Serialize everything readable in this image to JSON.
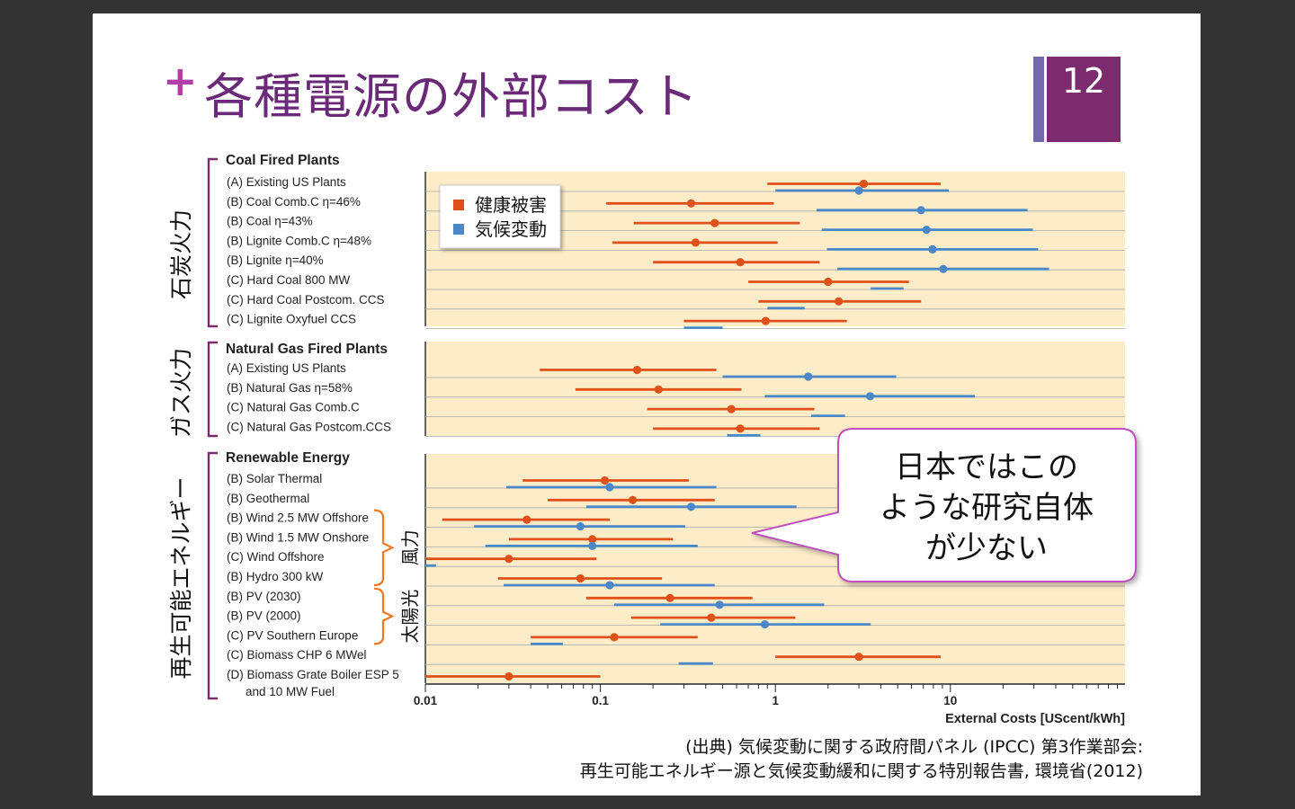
{
  "slide": {
    "title": "各種電源の外部コスト",
    "page_number": "12",
    "plus_symbol": "+",
    "source_lines": [
      "(出典) 気候変動に関する政府間パネル (IPCC) 第3作業部会:",
      "再生可能エネルギー源と気候変動緩和に関する特別報告書, 環境省(2012)"
    ],
    "callout_lines": [
      "日本ではこの",
      "ような研究自体",
      "が少ない"
    ]
  },
  "colors": {
    "health": "#e0501a",
    "climate": "#4a88c8",
    "panel_bg": "#fdecc8",
    "bracket": "#7b2b6e",
    "sub_bracket": "#f07820",
    "callout_border": "#c050c0"
  },
  "chart_data": {
    "type": "scatter",
    "x_scale": "log",
    "xlim": [
      0.01,
      1000
    ],
    "x_ticks": [
      "0.01",
      "0.1",
      "1",
      "10"
    ],
    "xlabel": "External Costs [UScent/kWh]",
    "legend": {
      "position": "top-left",
      "entries": [
        "健康被害",
        "気候変動"
      ]
    },
    "groups": [
      {
        "side_label": "石炭火力",
        "header": "Coal Fired Plants",
        "rows": [
          {
            "label": "(A) Existing US Plants",
            "health": {
              "lo": 0.9,
              "mid": 3.2,
              "hi": 8.8
            },
            "climate": {
              "lo": 1.0,
              "mid": 3.0,
              "hi": 9.8
            }
          },
          {
            "label": "(B) Coal Comb.C η=46%",
            "health": {
              "lo": 0.108,
              "mid": 0.33,
              "hi": 0.98
            },
            "climate": {
              "lo": 1.72,
              "mid": 6.8,
              "hi": 27.6
            }
          },
          {
            "label": "(B) Coal η=43%",
            "health": {
              "lo": 0.155,
              "mid": 0.45,
              "hi": 1.38
            },
            "climate": {
              "lo": 1.84,
              "mid": 7.3,
              "hi": 29.6
            }
          },
          {
            "label": "(B) Lignite Comb.C η=48%",
            "health": {
              "lo": 0.117,
              "mid": 0.35,
              "hi": 1.03
            },
            "climate": {
              "lo": 1.97,
              "mid": 7.9,
              "hi": 31.7
            }
          },
          {
            "label": "(B) Lignite η=40%",
            "health": {
              "lo": 0.2,
              "mid": 0.63,
              "hi": 1.79
            },
            "climate": {
              "lo": 2.26,
              "mid": 9.1,
              "hi": 36.6
            }
          },
          {
            "label": "(C) Hard Coal 800 MW",
            "health": {
              "lo": 0.7,
              "mid": 2.0,
              "hi": 5.8
            },
            "climate": {
              "lo": 3.5,
              "hi": 5.4
            }
          },
          {
            "label": "(C) Hard Coal Postcom. CCS",
            "health": {
              "lo": 0.8,
              "mid": 2.3,
              "hi": 6.8
            },
            "climate": {
              "lo": 0.9,
              "hi": 1.47
            }
          },
          {
            "label": "(C) Lignite Oxyfuel CCS",
            "health": {
              "lo": 0.3,
              "mid": 0.88,
              "hi": 2.56
            },
            "climate": {
              "lo": 0.3,
              "hi": 0.5
            }
          }
        ]
      },
      {
        "side_label": "ガス火力",
        "header": "Natural Gas Fired Plants",
        "rows": [
          {
            "label": "(A) Existing US Plants",
            "health": {
              "lo": 0.045,
              "mid": 0.162,
              "hi": 0.46
            },
            "climate": {
              "lo": 0.5,
              "mid": 1.54,
              "hi": 4.9
            }
          },
          {
            "label": "(B) Natural Gas η=58%",
            "health": {
              "lo": 0.072,
              "mid": 0.215,
              "hi": 0.64
            },
            "climate": {
              "lo": 0.87,
              "mid": 3.48,
              "hi": 13.8
            }
          },
          {
            "label": "(C) Natural Gas Comb.C",
            "health": {
              "lo": 0.185,
              "mid": 0.56,
              "hi": 1.67
            },
            "climate": {
              "lo": 1.6,
              "hi": 2.5
            }
          },
          {
            "label": "(C) Natural Gas Postcom.CCS",
            "health": {
              "lo": 0.2,
              "mid": 0.63,
              "hi": 1.79
            },
            "climate": {
              "lo": 0.53,
              "hi": 0.82
            }
          }
        ]
      },
      {
        "side_label": "再生可能エネルギー",
        "header": "Renewable Energy",
        "sub_labels": [
          "風力",
          "太陽光"
        ],
        "rows": [
          {
            "label": "(B) Solar Thermal",
            "health": {
              "lo": 0.036,
              "mid": 0.106,
              "hi": 0.32
            },
            "climate": {
              "lo": 0.029,
              "mid": 0.113,
              "hi": 0.46
            }
          },
          {
            "label": "(B) Geothermal",
            "health": {
              "lo": 0.05,
              "mid": 0.153,
              "hi": 0.45
            },
            "climate": {
              "lo": 0.083,
              "mid": 0.33,
              "hi": 1.32
            }
          },
          {
            "label": "(B) Wind 2.5 MW Offshore",
            "health": {
              "lo": 0.0125,
              "mid": 0.038,
              "hi": 0.113
            },
            "climate": {
              "lo": 0.019,
              "mid": 0.077,
              "hi": 0.305
            }
          },
          {
            "label": "(B) Wind 1.5 MW Onshore",
            "health": {
              "lo": 0.03,
              "mid": 0.09,
              "hi": 0.26
            },
            "climate": {
              "lo": 0.022,
              "mid": 0.09,
              "hi": 0.36
            }
          },
          {
            "label": "(C) Wind Offshore",
            "health": {
              "lo": 0.01,
              "mid": 0.03,
              "hi": 0.095
            },
            "climate": {
              "lo": 0.01,
              "hi": 0.0115
            }
          },
          {
            "label": "(B) Hydro 300 kW",
            "health": {
              "lo": 0.026,
              "mid": 0.077,
              "hi": 0.225
            },
            "climate": {
              "lo": 0.028,
              "mid": 0.113,
              "hi": 0.45
            }
          },
          {
            "label": "(B) PV (2030)",
            "health": {
              "lo": 0.083,
              "mid": 0.25,
              "hi": 0.74
            },
            "climate": {
              "lo": 0.12,
              "mid": 0.48,
              "hi": 1.9
            }
          },
          {
            "label": "(B) PV (2000)",
            "health": {
              "lo": 0.15,
              "mid": 0.43,
              "hi": 1.3
            },
            "climate": {
              "lo": 0.22,
              "mid": 0.87,
              "hi": 3.5
            }
          },
          {
            "label": "(C) PV Southern Europe",
            "health": {
              "lo": 0.04,
              "mid": 0.12,
              "hi": 0.36
            },
            "climate": {
              "lo": 0.04,
              "hi": 0.061
            }
          },
          {
            "label": "(C) Biomass CHP 6 MWel",
            "health": {
              "lo": 1.0,
              "mid": 3.0,
              "hi": 8.8
            },
            "climate": {
              "lo": 0.28,
              "hi": 0.44
            }
          },
          {
            "label": [
              "(D) Biomass Grate Boiler ESP 5",
              "and 10 MW Fuel"
            ],
            "health": {
              "lo": 0.01,
              "mid": 0.03,
              "hi": 0.1
            }
          }
        ]
      }
    ]
  }
}
